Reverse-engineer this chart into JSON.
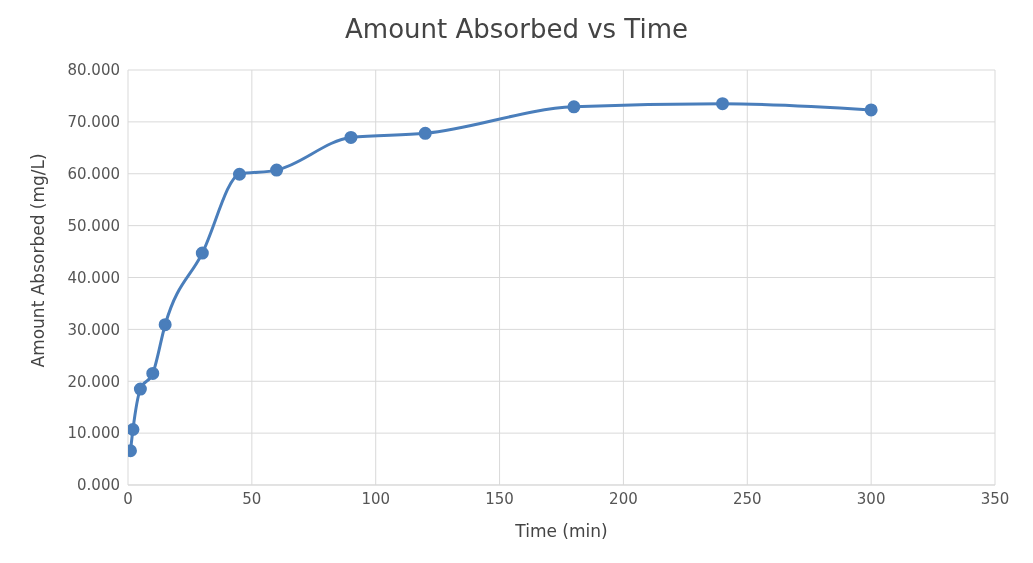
{
  "chart_data": {
    "type": "line",
    "title": "Amount Absorbed vs Time",
    "xlabel": "Time (min)",
    "ylabel": "Amount Absorbed (mg/L)",
    "x": [
      1,
      2,
      5,
      10,
      15,
      30,
      45,
      60,
      90,
      120,
      180,
      240,
      300
    ],
    "series": [
      {
        "color": "#4a7ebb",
        "values": [
          6.6,
          10.7,
          18.5,
          21.5,
          30.9,
          44.7,
          59.9,
          60.7,
          67.0,
          67.8,
          72.9,
          73.5,
          72.3
        ]
      }
    ],
    "xlim": [
      0,
      350
    ],
    "xticks": [
      0,
      50,
      100,
      150,
      200,
      250,
      300,
      350
    ],
    "ylim": [
      0,
      80
    ],
    "yticks": [
      {
        "value": 0,
        "label": "0.000"
      },
      {
        "value": 10,
        "label": "10.000"
      },
      {
        "value": 20,
        "label": "20.000"
      },
      {
        "value": 30,
        "label": "30.000"
      },
      {
        "value": 40,
        "label": "40.000"
      },
      {
        "value": 50,
        "label": "50.000"
      },
      {
        "value": 60,
        "label": "60.000"
      },
      {
        "value": 70,
        "label": "70.000"
      },
      {
        "value": 80,
        "label": "80.000"
      }
    ],
    "grid": true,
    "marker": "circle",
    "line_style": "solid",
    "legend": false
  }
}
